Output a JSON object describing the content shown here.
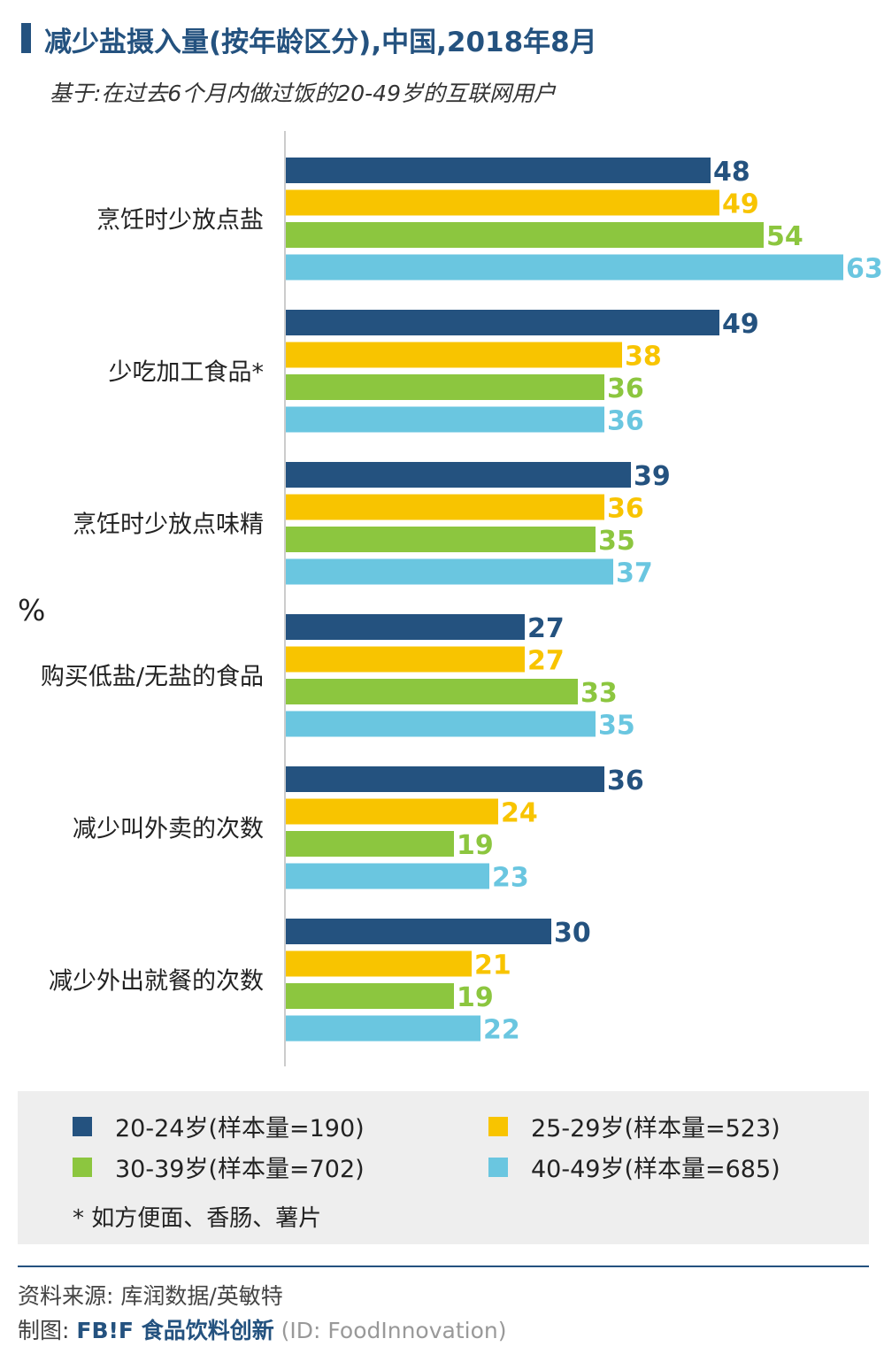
{
  "header": {
    "title": "减少盐摄入量(按年龄区分),中国,2018年8月",
    "subtitle": "基于:在过去6个月内做过饭的20-49岁的互联网用户"
  },
  "unit_label": "%",
  "chart_data": {
    "type": "bar",
    "orientation": "horizontal",
    "title": "减少盐摄入量(按年龄区分),中国,2018年8月",
    "subtitle": "基于:在过去6个月内做过饭的20-49岁的互联网用户",
    "ylabel": "%",
    "xlim": [
      0,
      63
    ],
    "grid": false,
    "legend": "bottom",
    "categories": [
      "烹饪时少放点盐",
      "少吃加工食品*",
      "烹饪时少放点味精",
      "购买低盐/无盐的食品",
      "减少叫外卖的次数",
      "减少外出就餐的次数"
    ],
    "series": [
      {
        "name": "20-24岁(样本量=190)",
        "color": "#24527f",
        "values": [
          48,
          49,
          39,
          27,
          36,
          30
        ]
      },
      {
        "name": "25-29岁(样本量=523)",
        "color": "#f8c400",
        "values": [
          49,
          38,
          36,
          27,
          24,
          21
        ]
      },
      {
        "name": "30-39岁(样本量=702)",
        "color": "#8cc63f",
        "values": [
          54,
          36,
          35,
          33,
          19,
          19
        ]
      },
      {
        "name": "40-49岁(样本量=685)",
        "color": "#6ac6e0",
        "values": [
          63,
          36,
          37,
          35,
          23,
          22
        ]
      }
    ]
  },
  "legend": {
    "items": [
      {
        "label": "20-24岁(样本量=190)",
        "color": "#24527f"
      },
      {
        "label": "25-29岁(样本量=523)",
        "color": "#f8c400"
      },
      {
        "label": "30-39岁(样本量=702)",
        "color": "#8cc63f"
      },
      {
        "label": "40-49岁(样本量=685)",
        "color": "#6ac6e0"
      }
    ],
    "footnote": "* 如方便面、香肠、薯片"
  },
  "footer": {
    "source": "资料来源: 库润数据/英敏特",
    "credit_prefix": "制图:",
    "brand": "FB!F 食品饮料创新",
    "brand_id": "(ID: FoodInnovation)"
  }
}
